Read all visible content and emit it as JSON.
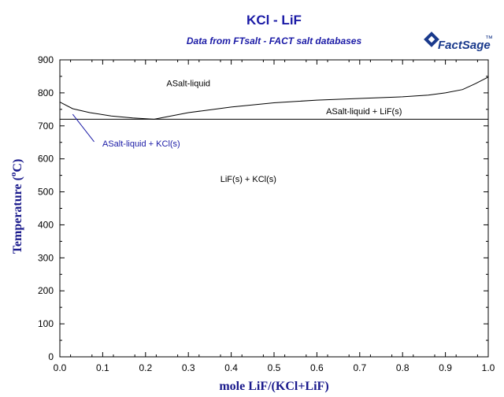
{
  "chart_data": {
    "type": "line",
    "title": "KCl - LiF",
    "subtitle": "Data from FTsalt - FACT salt databases",
    "xlabel": "mole LiF/(KCl+LiF)",
    "ylabel": "Temperature (°C)",
    "ylabel_parts": {
      "main": "Temperature (",
      "degree": "o",
      "unit": "C)"
    },
    "xlim": [
      0,
      1
    ],
    "ylim": [
      0,
      900
    ],
    "xticks": [
      0.0,
      0.1,
      0.2,
      0.3,
      0.4,
      0.5,
      0.6,
      0.7,
      0.8,
      0.9,
      1.0
    ],
    "xtick_labels": [
      "0.0",
      "0.1",
      "0.2",
      "0.3",
      "0.4",
      "0.5",
      "0.6",
      "0.7",
      "0.8",
      "0.9",
      "1.0"
    ],
    "yticks": [
      0,
      100,
      200,
      300,
      400,
      500,
      600,
      700,
      800,
      900
    ],
    "ytick_labels": [
      "0",
      "100",
      "200",
      "300",
      "400",
      "500",
      "600",
      "700",
      "800",
      "900"
    ],
    "grid": false,
    "series": [
      {
        "x": [
          0.0,
          0.03,
          0.07,
          0.12,
          0.17,
          0.22
        ],
        "y": [
          772,
          752,
          740,
          730,
          724,
          720
        ]
      },
      {
        "x": [
          0.22,
          0.3,
          0.4,
          0.5,
          0.6,
          0.7,
          0.8,
          0.86,
          0.9,
          0.94,
          0.97,
          1.0
        ],
        "y": [
          720,
          740,
          757,
          770,
          778,
          783,
          788,
          793,
          800,
          810,
          828,
          848
        ]
      },
      {
        "x": [
          0.0,
          1.0
        ],
        "y": [
          720,
          720
        ]
      }
    ],
    "annotations": [
      {
        "text": "ASalt-liquid",
        "x": 0.3,
        "y": 820,
        "color": "#000000"
      },
      {
        "text": "ASalt-liquid + LiF(s)",
        "x": 0.71,
        "y": 735,
        "color": "#000000"
      },
      {
        "text": "ASalt-liquid + KCl(s)",
        "x": 0.19,
        "y": 637,
        "color": "#1a1aa6",
        "pointer": {
          "from": [
            0.08,
            652
          ],
          "to": [
            0.03,
            735
          ]
        }
      },
      {
        "text": "LiF(s) + KCl(s)",
        "x": 0.44,
        "y": 530,
        "color": "#000000"
      }
    ]
  },
  "logo": {
    "text": "FactSage",
    "tm": "™"
  }
}
